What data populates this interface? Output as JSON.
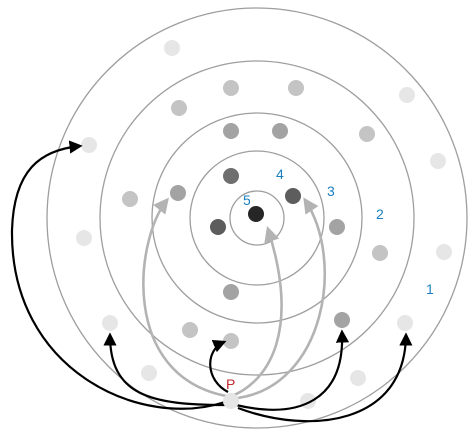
{
  "diagram": {
    "ring_labels": [
      {
        "id": "ring-1",
        "text": "1",
        "color": "#1a7fc1"
      },
      {
        "id": "ring-2",
        "text": "2",
        "color": "#1a7fc1"
      },
      {
        "id": "ring-3",
        "text": "3",
        "color": "#1a7fc1"
      },
      {
        "id": "ring-4",
        "text": "4",
        "color": "#1a7fc1"
      },
      {
        "id": "ring-5",
        "text": "5",
        "color": "#1a7fc1"
      }
    ],
    "origin_label": {
      "text": "P",
      "color": "#c0282d"
    },
    "colors": {
      "ring_stroke": "#9e9e9e",
      "dot_level_1": "#e6e6e6",
      "dot_level_2": "#c4c4c4",
      "dot_level_3": "#a3a3a3",
      "dot_level_4": "#7b7b7b",
      "dot_level_5": "#5d5d5d",
      "dot_center": "#262626",
      "arrow_black": "#000000",
      "arrow_gray": "#b3b3b3"
    }
  }
}
